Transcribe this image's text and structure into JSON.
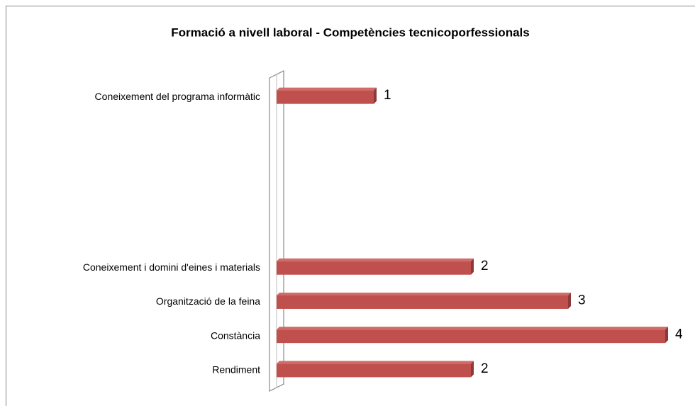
{
  "chart_data": {
    "type": "bar",
    "orientation": "horizontal",
    "title": "Formació a nivell laboral - Competències tecnicoporfessionals",
    "categories": [
      "Coneixement del programa informàtic",
      null,
      null,
      null,
      null,
      "Coneixement i domini d'eines i materials",
      "Organització de la feina",
      "Constància",
      "Rendiment"
    ],
    "values": [
      1,
      null,
      null,
      null,
      null,
      2,
      3,
      4,
      2
    ],
    "color": "#c0504d",
    "xlim": [
      0,
      4
    ]
  }
}
